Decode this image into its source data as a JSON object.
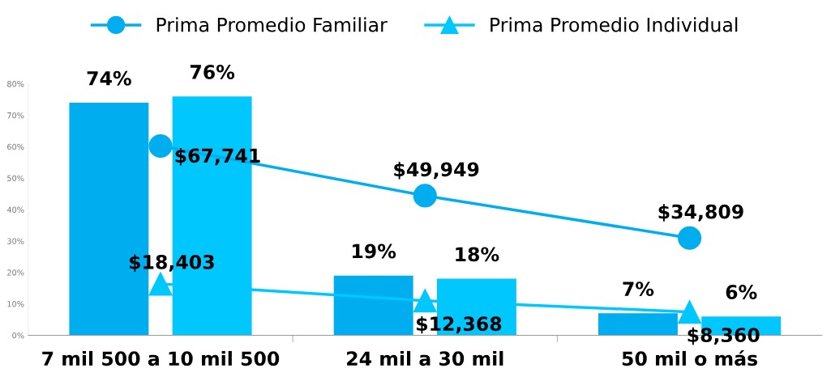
{
  "chart_data": {
    "type": "bar",
    "categories": [
      "7 mil 500 a 10 mil 500",
      "24 mil a 30 mil",
      "50 mil o más"
    ],
    "series": [
      {
        "color": "#00aeef",
        "values": [
          74,
          19,
          7
        ],
        "value_labels": [
          "74%",
          "19%",
          "7%"
        ]
      },
      {
        "color": "#00c8ff",
        "values": [
          76,
          18,
          6
        ],
        "value_labels": [
          "76%",
          "18%",
          "6%"
        ]
      },
      {
        "name": "Prima Promedio Familiar",
        "type": "line",
        "axis": "y2",
        "marker": "circle",
        "color": "#00aeef",
        "values": [
          67741,
          49949,
          34809
        ],
        "value_labels": [
          "$67,741",
          "$49,949",
          "$34,809"
        ]
      },
      {
        "name": "Prima Promedio Individual",
        "type": "line",
        "axis": "y2",
        "marker": "triangle",
        "color": "#00c8ff",
        "values": [
          18403,
          12368,
          8360
        ],
        "value_labels": [
          "$18,403",
          "$12,368",
          "$8,360"
        ]
      }
    ],
    "ylim": [
      0,
      80
    ],
    "yticks": [
      {
        "value": 0,
        "label": "0%"
      },
      {
        "value": 10,
        "label": "10%"
      },
      {
        "value": 20,
        "label": "20%"
      },
      {
        "value": 30,
        "label": "30%"
      },
      {
        "value": 40,
        "label": "40%"
      },
      {
        "value": 50,
        "label": "50%"
      },
      {
        "value": 60,
        "label": "60%"
      },
      {
        "value": 70,
        "label": "70%"
      },
      {
        "value": 80,
        "label": "80%"
      }
    ],
    "y2lim": [
      0,
      90000
    ],
    "legend": "top",
    "grid": false
  }
}
